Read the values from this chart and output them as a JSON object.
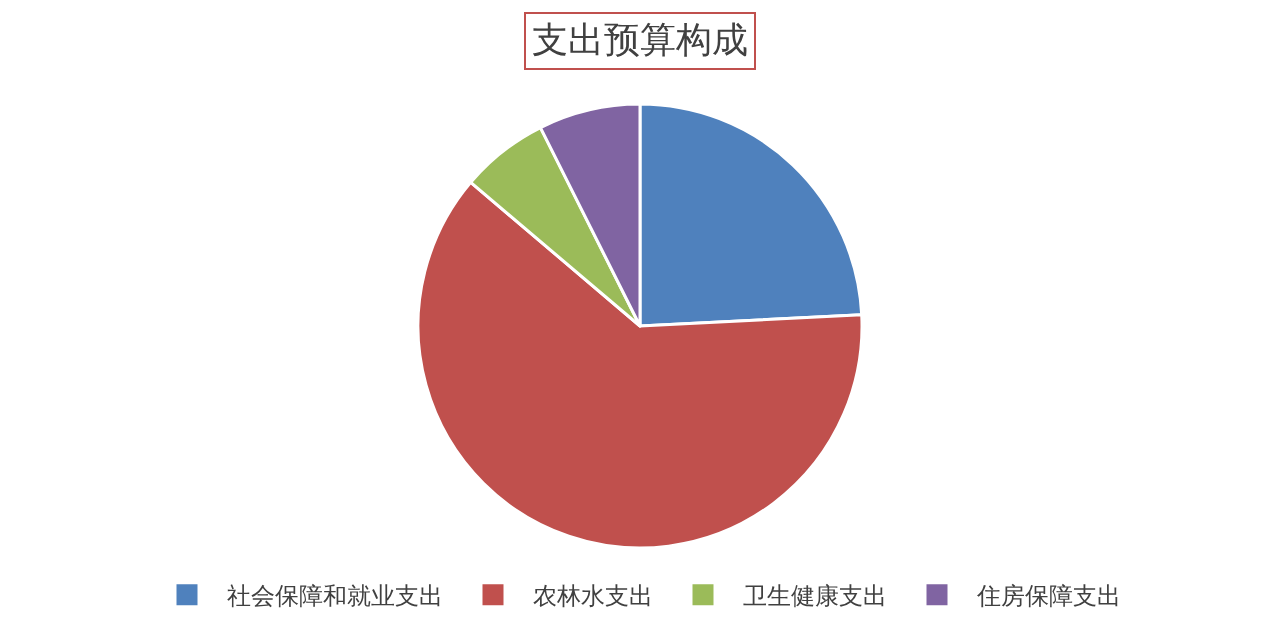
{
  "chart_data": {
    "type": "pie",
    "title": "支出预算构成",
    "categories": [
      "社会保障和就业支出",
      "农林水支出",
      "卫生健康支出",
      "住房保障支出"
    ],
    "values": [
      24.2,
      62,
      6.4,
      7.4
    ],
    "colors": [
      "#4f81bd",
      "#c0504d",
      "#9bbb59",
      "#8064a2"
    ],
    "legend": "bottom"
  }
}
